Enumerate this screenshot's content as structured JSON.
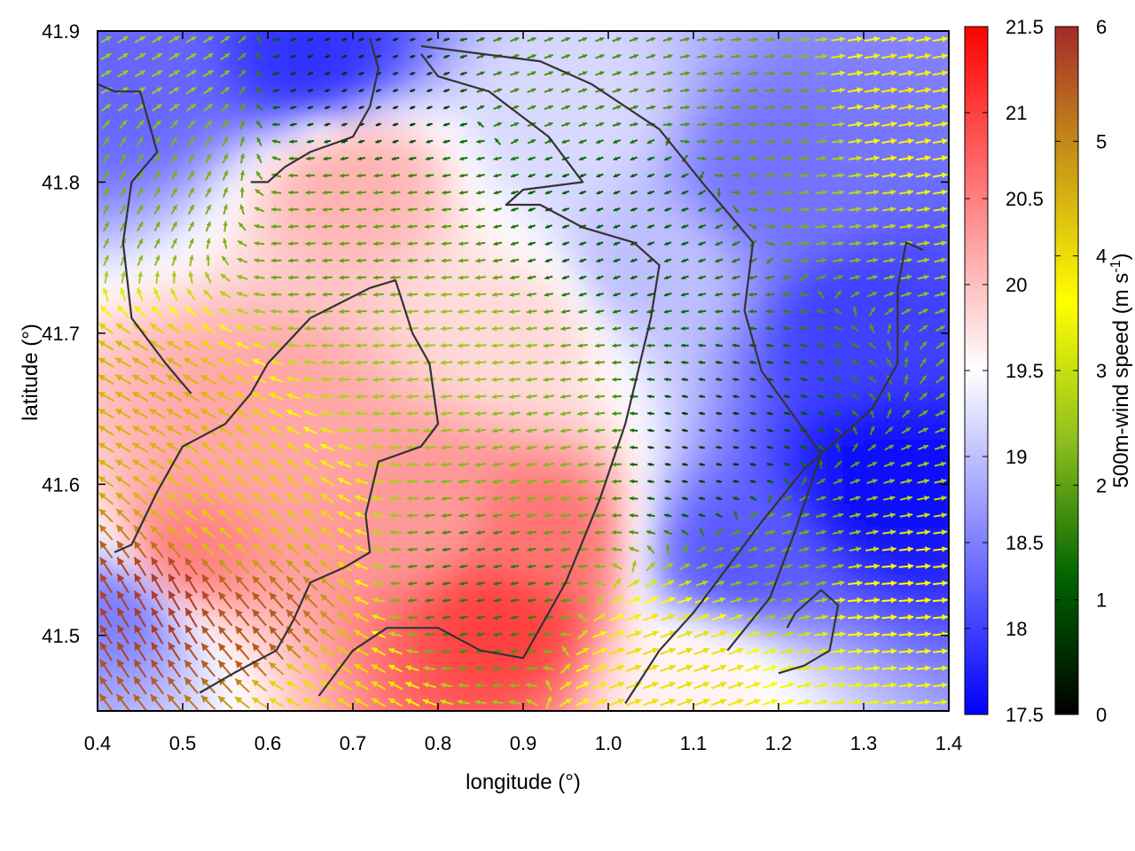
{
  "chart_data": {
    "type": "heatmap",
    "title": "",
    "xlabel": "longitude (°)",
    "ylabel": "latitude (°)",
    "xlim": [
      0.4,
      1.4
    ],
    "ylim": [
      41.45,
      41.9
    ],
    "x_ticks": [
      "0.4",
      "0.5",
      "0.6",
      "0.7",
      "0.8",
      "0.9",
      "1.0",
      "1.1",
      "1.2",
      "1.3",
      "1.4"
    ],
    "y_ticks": [
      "41.5",
      "41.6",
      "41.7",
      "41.8",
      "41.9"
    ],
    "grid": false,
    "temperature_colorbar": {
      "range": [
        17.5,
        21.5
      ],
      "ticks": [
        "17.5",
        "18",
        "18.5",
        "19",
        "19.5",
        "20",
        "20.5",
        "21",
        "21.5"
      ],
      "colors": [
        "#0000ff",
        "#ffffff",
        "#ff0000"
      ]
    },
    "wind_colorbar": {
      "label": "500m-wind speed (m s",
      "label_superscript": "-1",
      "label_suffix": ")",
      "range": [
        0,
        6
      ],
      "ticks": [
        "0",
        "1",
        "2",
        "3",
        "4",
        "5",
        "6"
      ],
      "colors": [
        "#000000",
        "#006400",
        "#8fbf1f",
        "#ffff00",
        "#c89a16",
        "#a52a2a"
      ]
    },
    "temperature_field_features": [
      {
        "lon": 0.88,
        "lat": 41.51,
        "value": 21.0
      },
      {
        "lon": 0.92,
        "lat": 41.56,
        "value": 20.6
      },
      {
        "lon": 0.6,
        "lat": 41.64,
        "value": 20.2
      },
      {
        "lon": 0.5,
        "lat": 41.55,
        "value": 20.5
      },
      {
        "lon": 0.78,
        "lat": 41.58,
        "value": 20.3
      },
      {
        "lon": 0.7,
        "lat": 41.8,
        "value": 20.1
      },
      {
        "lon": 0.9,
        "lat": 41.7,
        "value": 19.8
      },
      {
        "lon": 1.33,
        "lat": 41.6,
        "value": 17.6
      },
      {
        "lon": 1.3,
        "lat": 41.7,
        "value": 18.0
      },
      {
        "lon": 1.2,
        "lat": 41.8,
        "value": 18.4
      },
      {
        "lon": 0.65,
        "lat": 41.88,
        "value": 17.9
      },
      {
        "lon": 0.45,
        "lat": 41.87,
        "value": 18.3
      },
      {
        "lon": 0.43,
        "lat": 41.52,
        "value": 18.5
      },
      {
        "lon": 1.15,
        "lat": 41.55,
        "value": 18.2
      },
      {
        "lon": 0.95,
        "lat": 41.84,
        "value": 19.2
      },
      {
        "lon": 1.05,
        "lat": 41.74,
        "value": 19.0
      },
      {
        "lon": 1.1,
        "lat": 41.47,
        "value": 19.6
      }
    ],
    "wind_field_features": [
      {
        "lon": 0.48,
        "lat": 41.52,
        "speed": 5.8,
        "direction_deg": 120
      },
      {
        "lon": 0.58,
        "lat": 41.5,
        "speed": 5.5,
        "direction_deg": 130
      },
      {
        "lon": 0.45,
        "lat": 41.65,
        "speed": 4.5,
        "direction_deg": 150
      },
      {
        "lon": 0.55,
        "lat": 41.58,
        "speed": 4.2,
        "direction_deg": 140
      },
      {
        "lon": 0.65,
        "lat": 41.46,
        "speed": 4.0,
        "direction_deg": 150
      },
      {
        "lon": 0.8,
        "lat": 41.68,
        "speed": 2.6,
        "direction_deg": 185
      },
      {
        "lon": 0.92,
        "lat": 41.62,
        "speed": 2.3,
        "direction_deg": 190
      },
      {
        "lon": 0.7,
        "lat": 41.76,
        "speed": 2.0,
        "direction_deg": 185
      },
      {
        "lon": 1.0,
        "lat": 41.78,
        "speed": 1.1,
        "direction_deg": 200
      },
      {
        "lon": 1.12,
        "lat": 41.62,
        "speed": 0.7,
        "direction_deg": 170
      },
      {
        "lon": 1.22,
        "lat": 41.55,
        "speed": 2.2,
        "direction_deg": 15
      },
      {
        "lon": 1.32,
        "lat": 41.52,
        "speed": 3.6,
        "direction_deg": 5
      },
      {
        "lon": 1.08,
        "lat": 41.48,
        "speed": 4.0,
        "direction_deg": 20
      },
      {
        "lon": 1.33,
        "lat": 41.86,
        "speed": 3.8,
        "direction_deg": 10
      },
      {
        "lon": 1.2,
        "lat": 41.85,
        "speed": 2.0,
        "direction_deg": 5
      },
      {
        "lon": 0.95,
        "lat": 41.88,
        "speed": 1.8,
        "direction_deg": 20
      },
      {
        "lon": 0.45,
        "lat": 41.8,
        "speed": 2.2,
        "direction_deg": 60
      },
      {
        "lon": 0.45,
        "lat": 41.88,
        "speed": 2.6,
        "direction_deg": 30
      },
      {
        "lon": 0.72,
        "lat": 41.87,
        "speed": 0.6,
        "direction_deg": 200
      },
      {
        "lon": 0.85,
        "lat": 41.53,
        "speed": 1.5,
        "direction_deg": 190
      }
    ],
    "contours": [
      [
        [
          0.42,
          41.555
        ],
        [
          0.44,
          41.56
        ],
        [
          0.47,
          41.595
        ],
        [
          0.5,
          41.625
        ],
        [
          0.55,
          41.64
        ],
        [
          0.58,
          41.66
        ],
        [
          0.6,
          41.68
        ],
        [
          0.65,
          41.71
        ],
        [
          0.72,
          41.73
        ],
        [
          0.75,
          41.735
        ],
        [
          0.77,
          41.7
        ],
        [
          0.79,
          41.68
        ],
        [
          0.8,
          41.64
        ],
        [
          0.78,
          41.625
        ],
        [
          0.73,
          41.615
        ],
        [
          0.715,
          41.58
        ],
        [
          0.72,
          41.555
        ],
        [
          0.69,
          41.545
        ],
        [
          0.65,
          41.535
        ],
        [
          0.63,
          41.51
        ],
        [
          0.61,
          41.49
        ],
        [
          0.56,
          41.475
        ],
        [
          0.52,
          41.462
        ]
      ],
      [
        [
          0.66,
          41.46
        ],
        [
          0.7,
          41.49
        ],
        [
          0.74,
          41.505
        ],
        [
          0.8,
          41.505
        ],
        [
          0.85,
          41.49
        ],
        [
          0.9,
          41.485
        ],
        [
          0.95,
          41.535
        ],
        [
          0.99,
          41.59
        ],
        [
          1.02,
          41.64
        ],
        [
          1.05,
          41.71
        ],
        [
          1.06,
          41.745
        ],
        [
          1.03,
          41.76
        ],
        [
          0.97,
          41.77
        ],
        [
          0.92,
          41.785
        ],
        [
          0.88,
          41.785
        ],
        [
          0.9,
          41.795
        ],
        [
          0.97,
          41.8
        ],
        [
          0.93,
          41.83
        ],
        [
          0.86,
          41.86
        ],
        [
          0.8,
          41.87
        ],
        [
          0.78,
          41.885
        ]
      ],
      [
        [
          1.02,
          41.455
        ],
        [
          1.06,
          41.49
        ],
        [
          1.1,
          41.515
        ],
        [
          1.14,
          41.545
        ],
        [
          1.18,
          41.575
        ],
        [
          1.23,
          41.61
        ],
        [
          1.27,
          41.63
        ],
        [
          1.31,
          41.65
        ],
        [
          1.34,
          41.68
        ],
        [
          1.34,
          41.73
        ],
        [
          1.35,
          41.76
        ],
        [
          1.37,
          41.755
        ]
      ],
      [
        [
          1.14,
          41.49
        ],
        [
          1.19,
          41.525
        ],
        [
          1.22,
          41.57
        ],
        [
          1.25,
          41.62
        ],
        [
          1.18,
          41.675
        ],
        [
          1.16,
          41.715
        ],
        [
          1.17,
          41.76
        ],
        [
          1.14,
          41.78
        ],
        [
          1.11,
          41.8
        ],
        [
          1.06,
          41.835
        ],
        [
          0.98,
          41.865
        ],
        [
          0.92,
          41.88
        ],
        [
          0.85,
          41.885
        ],
        [
          0.78,
          41.89
        ]
      ],
      [
        [
          0.51,
          41.66
        ],
        [
          0.48,
          41.68
        ],
        [
          0.44,
          41.71
        ],
        [
          0.43,
          41.76
        ],
        [
          0.44,
          41.8
        ],
        [
          0.47,
          41.82
        ],
        [
          0.45,
          41.86
        ],
        [
          0.42,
          41.86
        ],
        [
          0.4,
          41.865
        ]
      ],
      [
        [
          0.58,
          41.8
        ],
        [
          0.6,
          41.8
        ],
        [
          0.62,
          41.81
        ],
        [
          0.65,
          41.82
        ],
        [
          0.7,
          41.83
        ],
        [
          0.72,
          41.85
        ],
        [
          0.73,
          41.875
        ],
        [
          0.72,
          41.895
        ]
      ],
      [
        [
          1.2,
          41.475
        ],
        [
          1.23,
          41.48
        ],
        [
          1.26,
          41.49
        ],
        [
          1.27,
          41.52
        ],
        [
          1.25,
          41.53
        ],
        [
          1.22,
          41.515
        ],
        [
          1.21,
          41.505
        ]
      ]
    ]
  }
}
